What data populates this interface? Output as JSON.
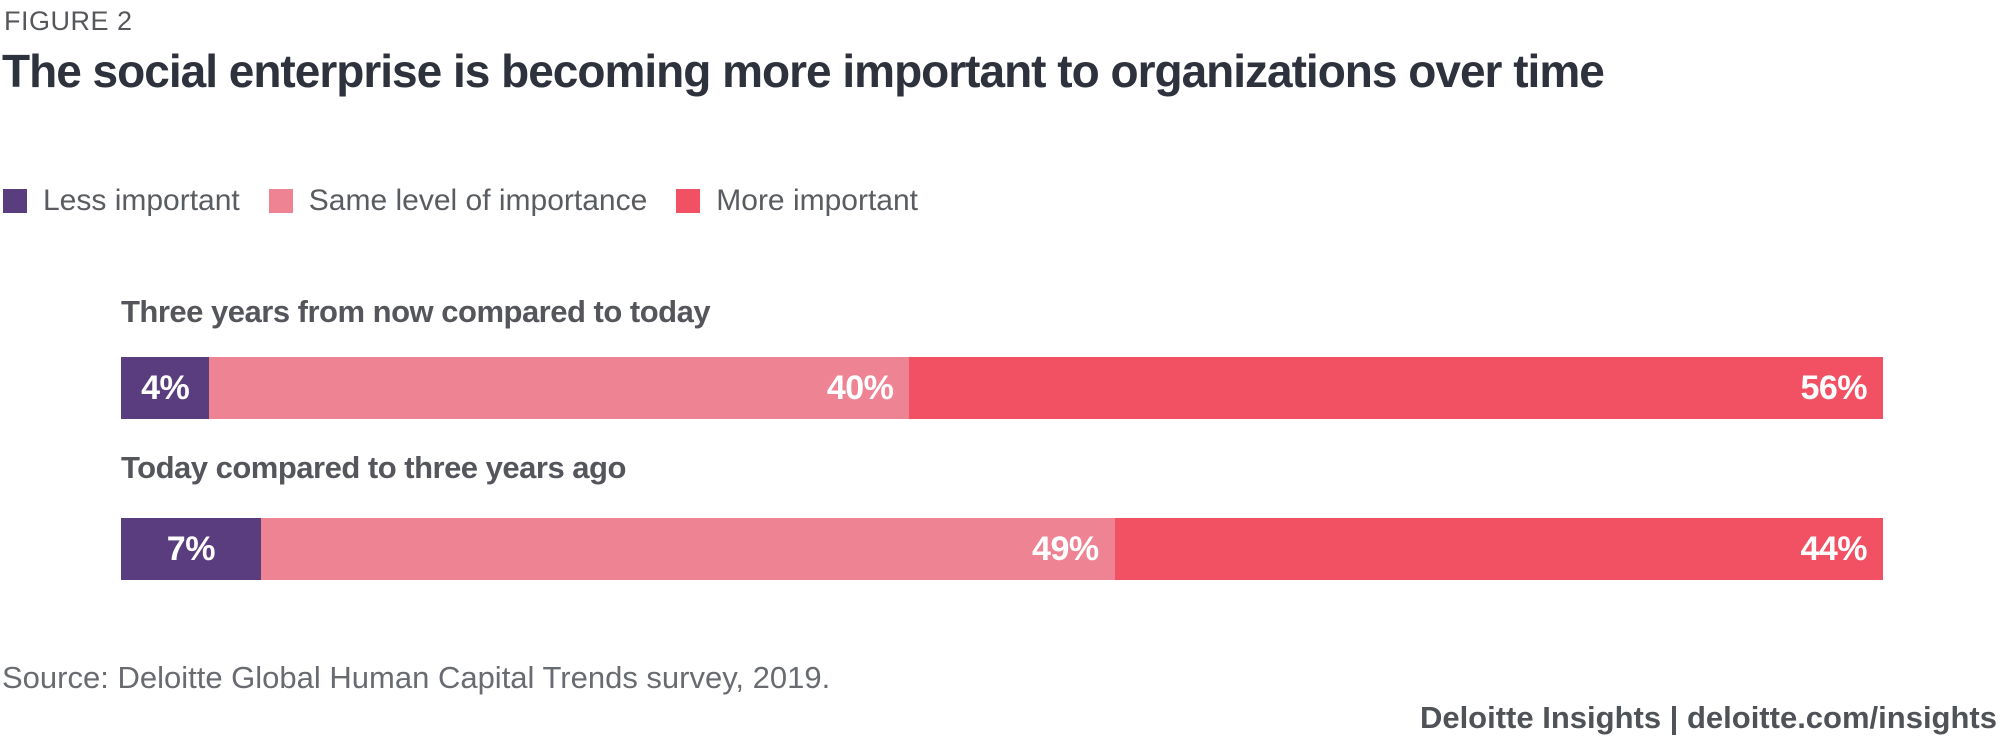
{
  "figure_label": "FIGURE 2",
  "title": "The social enterprise is becoming more important to organizations over time",
  "source": "Source: Deloitte Global Human Capital Trends survey, 2019.",
  "footer": "Deloitte Insights | deloitte.com/insights",
  "chart_data": {
    "type": "bar",
    "orientation": "horizontal-stacked",
    "title": "The social enterprise is becoming more important to organizations over time",
    "categories": [
      "Three years from now compared to today",
      "Today compared to three years ago"
    ],
    "series": [
      {
        "name": "Less important",
        "color": "#5a3d7e",
        "values": [
          4,
          7
        ]
      },
      {
        "name": "Same level of importance",
        "color": "#ee8394",
        "values": [
          40,
          49
        ]
      },
      {
        "name": "More important",
        "color": "#f25164",
        "values": [
          56,
          44
        ]
      }
    ],
    "value_suffix": "%",
    "xlim": [
      0,
      100
    ],
    "grid": false,
    "legend_position": "top-left"
  }
}
